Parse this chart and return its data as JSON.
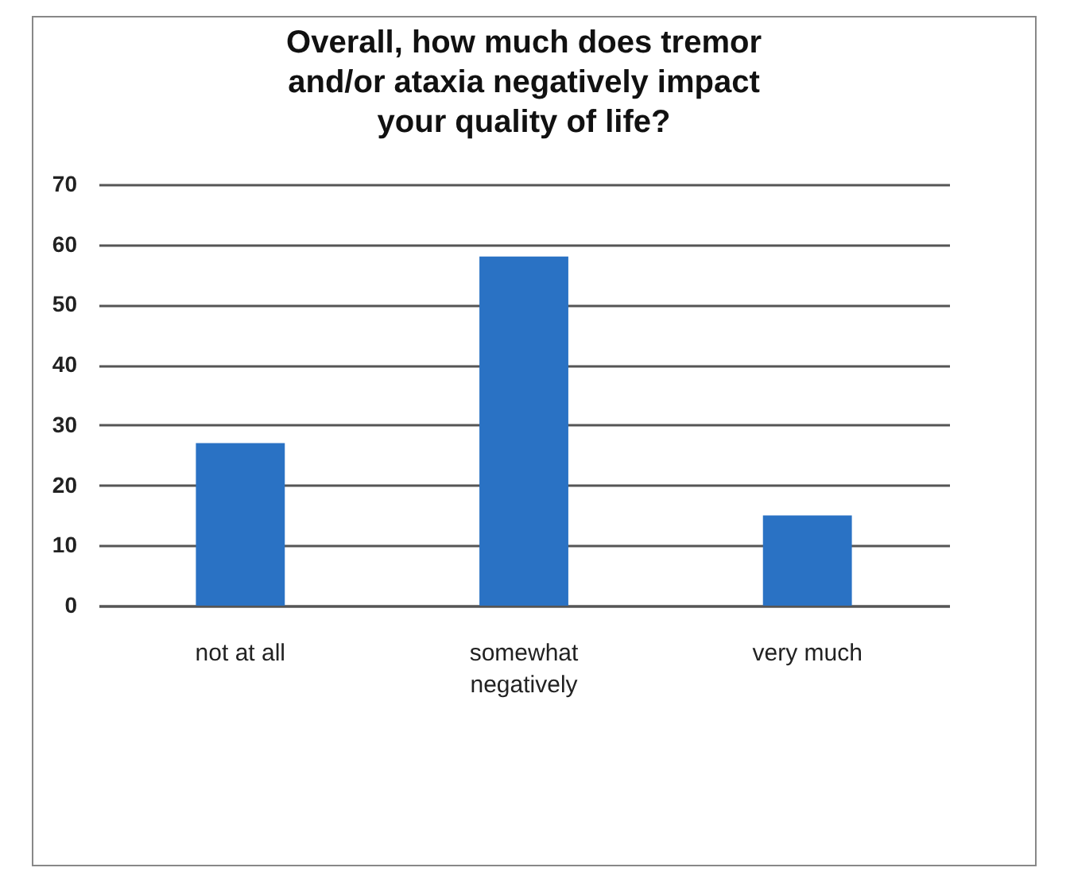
{
  "chart_data": {
    "type": "bar",
    "title": [
      "Overall, how much does tremor",
      "and/or ataxia negatively impact",
      "your quality of life?"
    ],
    "categories": [
      "not at all",
      "somewhat negatively",
      "very much"
    ],
    "values": [
      27,
      58,
      15
    ],
    "color": "#2a72c4",
    "ylim": [
      0,
      70
    ],
    "yticks": [
      0,
      10,
      20,
      30,
      40,
      50,
      60,
      70
    ],
    "grid": "y"
  }
}
